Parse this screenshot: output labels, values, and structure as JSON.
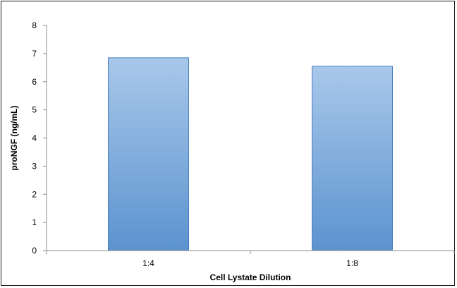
{
  "chart_data": {
    "type": "bar",
    "title": "",
    "xlabel": "Cell Lystate Dilution",
    "ylabel": "proNGF (ng/mL)",
    "categories": [
      "1:4",
      "1:8"
    ],
    "series": [
      {
        "values": [
          6.85,
          6.55
        ]
      }
    ],
    "ylim": [
      0,
      8
    ],
    "yticks": [
      0,
      1,
      2,
      3,
      4,
      5,
      6,
      7,
      8
    ],
    "grid": false,
    "legend": "none",
    "colors": {
      "bar_top": "#a9c8ea",
      "bar_bottom": "#5b93cf",
      "bar_edge": "#4a7fbf",
      "axis": "#8c8c8c"
    }
  }
}
